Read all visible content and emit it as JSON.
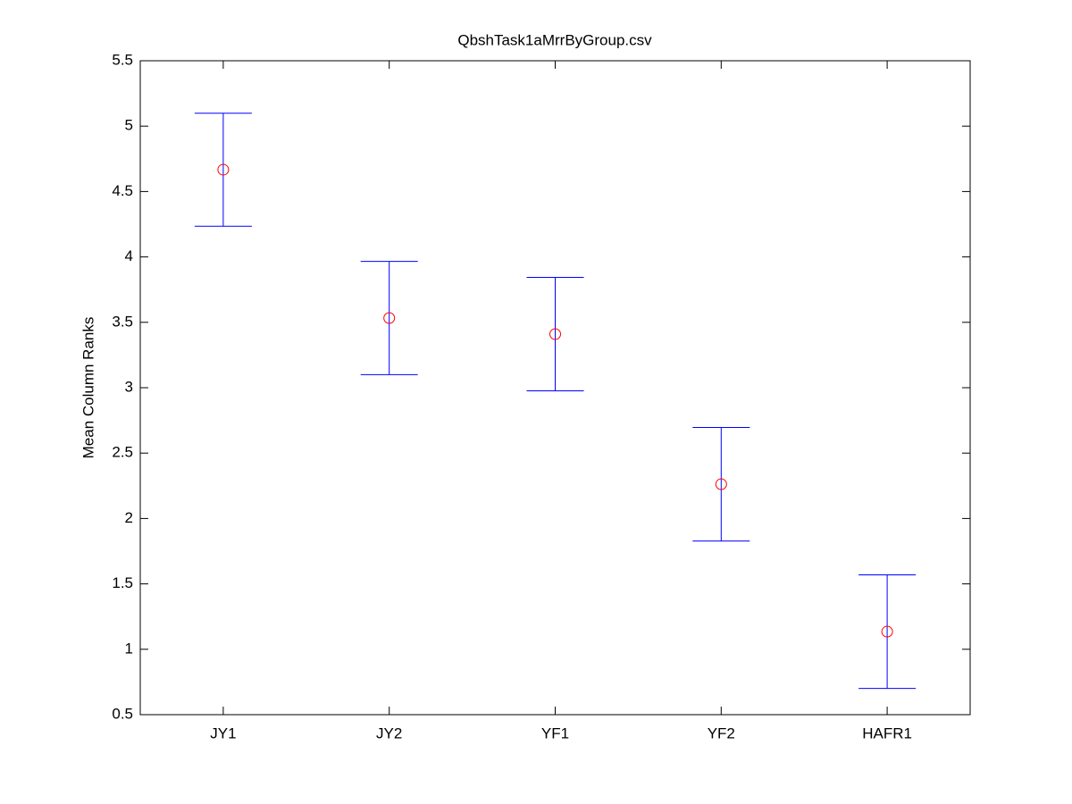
{
  "chart_data": {
    "type": "errorbar",
    "title": "QbshTask1aMrrByGroup.csv",
    "y_label": "Mean Column Ranks",
    "categories": [
      "JY1",
      "JY2",
      "YF1",
      "YF2",
      "HAFR1"
    ],
    "values": [
      4.667,
      3.533,
      3.41,
      2.262,
      1.135
    ],
    "errors": [
      0.432,
      0.433,
      0.434,
      0.434,
      0.434
    ],
    "marker_color": "#ff0000",
    "bar_color": "#0000ff",
    "ylim": [
      0.5,
      5.5
    ],
    "yticks": [
      0.5,
      1,
      1.5,
      2,
      2.5,
      3,
      3.5,
      4,
      4.5,
      5,
      5.5
    ]
  }
}
